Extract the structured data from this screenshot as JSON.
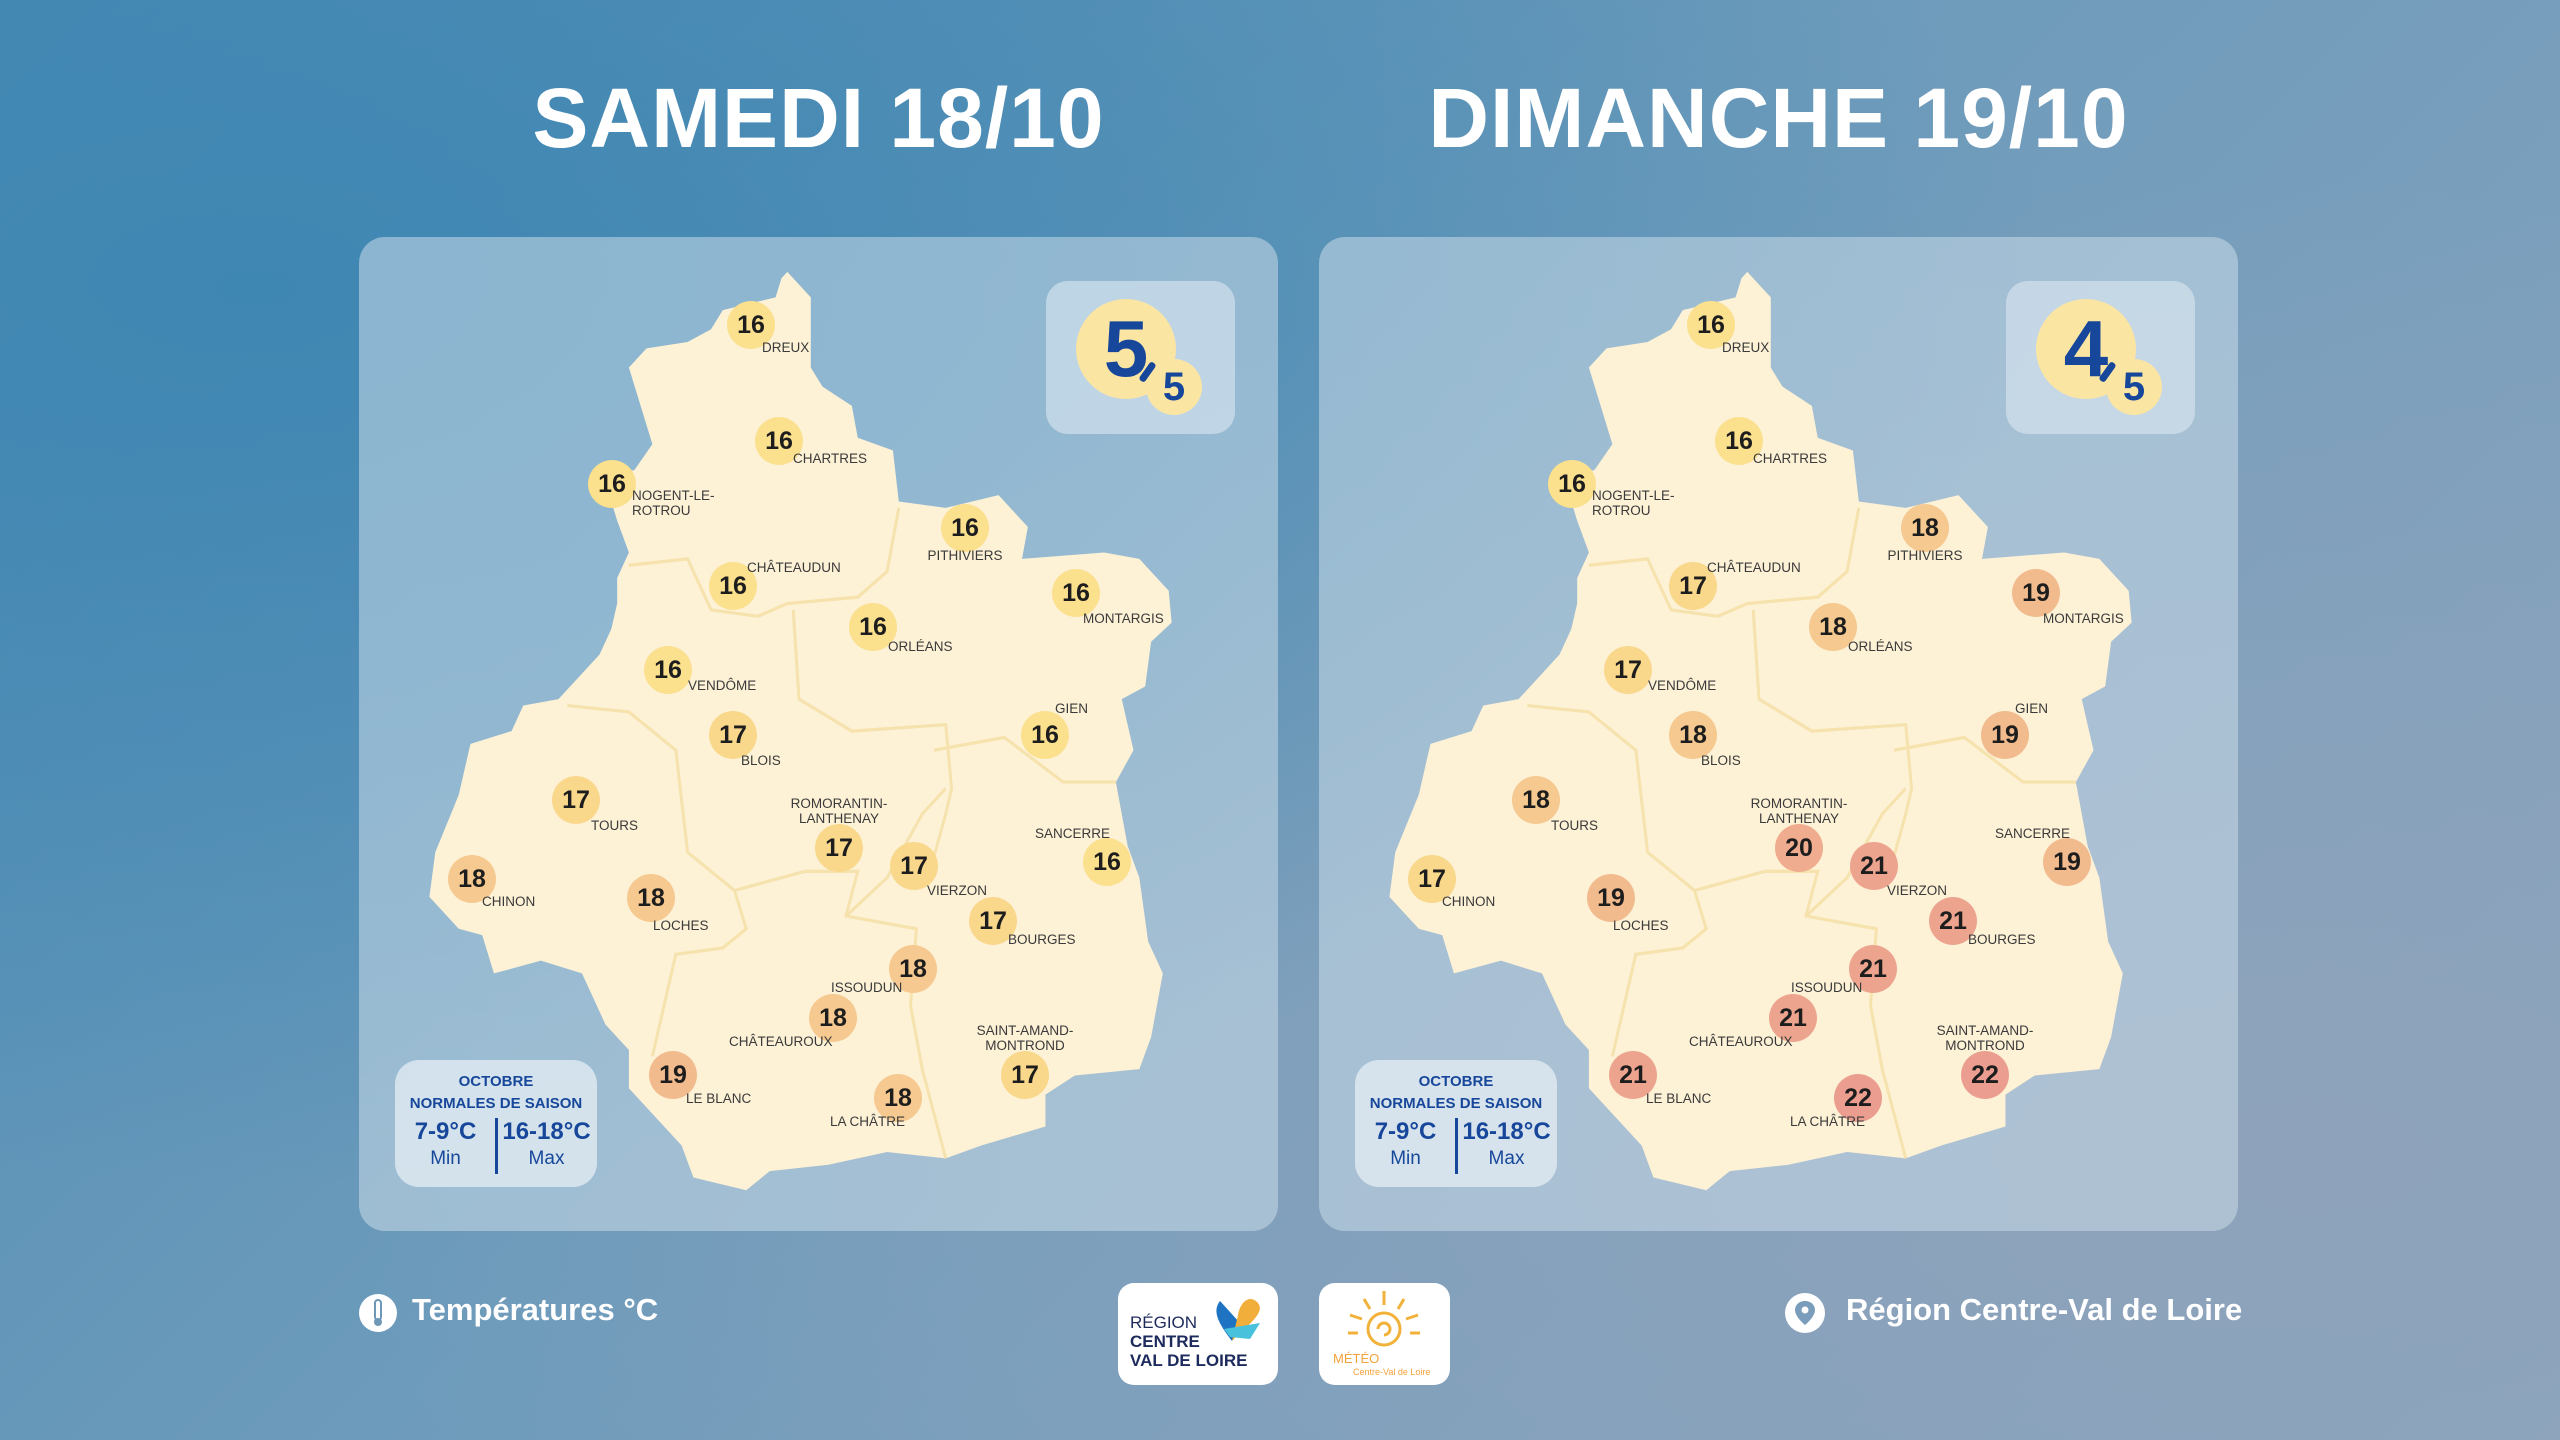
{
  "days": [
    {
      "title": "SAMEDI 18/10",
      "score": "5",
      "score_max": "5",
      "cities": [
        [
          "DREUX",
          "16"
        ],
        [
          "CHARTRES",
          "16"
        ],
        [
          "NOGENT-LE-\nROTROU",
          "16"
        ],
        [
          "PITHIVIERS",
          "16"
        ],
        [
          "CHÂTEAUDUN",
          "16"
        ],
        [
          "MONTARGIS",
          "16"
        ],
        [
          "ORLÉANS",
          "16"
        ],
        [
          "VENDÔME",
          "16"
        ],
        [
          "BLOIS",
          "17"
        ],
        [
          "GIEN",
          "16"
        ],
        [
          "TOURS",
          "17"
        ],
        [
          "ROMORANTIN-\nLANTHENAY",
          "17"
        ],
        [
          "VIERZON",
          "17"
        ],
        [
          "SANCERRE",
          "16"
        ],
        [
          "CHINON",
          "18"
        ],
        [
          "LOCHES",
          "18"
        ],
        [
          "BOURGES",
          "17"
        ],
        [
          "ISSOUDUN",
          "18"
        ],
        [
          "CHÂTEAUROUX",
          "18"
        ],
        [
          "SAINT-AMAND-\nMONTROND",
          "17"
        ],
        [
          "LE BLANC",
          "19"
        ],
        [
          "LA CHÂTRE",
          "18"
        ]
      ]
    },
    {
      "title": "DIMANCHE 19/10",
      "score": "4",
      "score_max": "5",
      "cities": [
        [
          "DREUX",
          "16"
        ],
        [
          "CHARTRES",
          "16"
        ],
        [
          "NOGENT-LE-\nROTROU",
          "16"
        ],
        [
          "PITHIVIERS",
          "18"
        ],
        [
          "CHÂTEAUDUN",
          "17"
        ],
        [
          "MONTARGIS",
          "19"
        ],
        [
          "ORLÉANS",
          "18"
        ],
        [
          "VENDÔME",
          "17"
        ],
        [
          "BLOIS",
          "18"
        ],
        [
          "GIEN",
          "19"
        ],
        [
          "TOURS",
          "18"
        ],
        [
          "ROMORANTIN-\nLANTHENAY",
          "20"
        ],
        [
          "VIERZON",
          "21"
        ],
        [
          "SANCERRE",
          "19"
        ],
        [
          "CHINON",
          "17"
        ],
        [
          "LOCHES",
          "19"
        ],
        [
          "BOURGES",
          "21"
        ],
        [
          "ISSOUDUN",
          "21"
        ],
        [
          "CHÂTEAUROUX",
          "21"
        ],
        [
          "SAINT-AMAND-\nMONTROND",
          "22"
        ],
        [
          "LE BLANC",
          "21"
        ],
        [
          "LA CHÂTRE",
          "22"
        ]
      ]
    }
  ],
  "legend": {
    "month": "OCTOBRE",
    "subtitle": "NORMALES DE SAISON",
    "min_value": "7-9°C",
    "min_label": "Min",
    "max_value": "16-18°C",
    "max_label": "Max"
  },
  "footer": {
    "left": "Températures °C",
    "left_icon": "thermometer-icon",
    "right": "Région Centre-Val de Loire",
    "right_icon": "location-pin-icon",
    "logo1": [
      "RÉGION",
      "CENTRE",
      "VAL DE LOIRE"
    ],
    "logo2": [
      "MÉTÉO",
      "Centre-Val de Loire"
    ]
  },
  "colors": {
    "map": "#fdf1d6",
    "text_blue": "#17479a",
    "16": "#fbe08e",
    "17": "#f9d88c",
    "18": "#f5c98f",
    "19": "#f2bb8e",
    "20": "#efac8e",
    "21": "#eda48f",
    "22": "#eb9e8f"
  }
}
